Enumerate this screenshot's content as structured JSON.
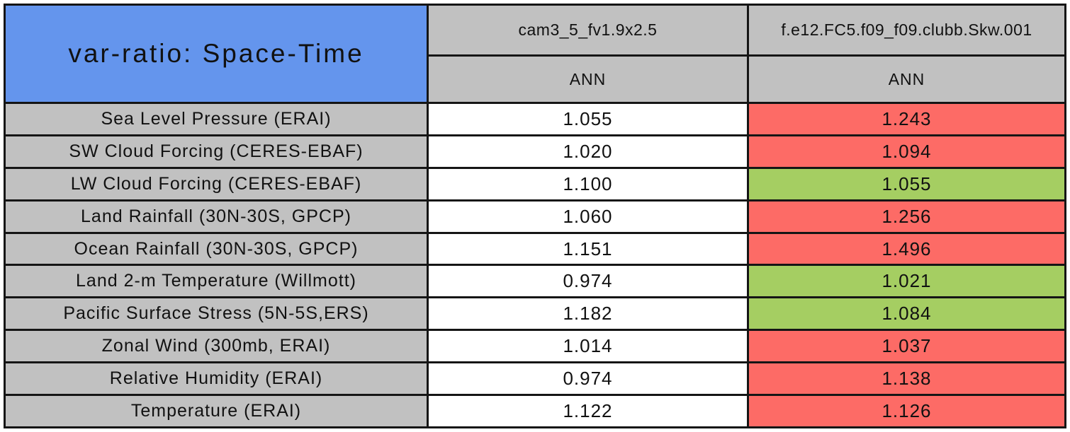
{
  "table": {
    "title": "var-ratio: Space-Time",
    "header": {
      "baseline_model": "cam3_5_fv1.9x2.5",
      "baseline_season": "ANN",
      "test_model": "f.e12.FC5.f09_f09.clubb.Skw.001",
      "test_season": "ANN"
    },
    "rows": [
      {
        "label": "Sea Level Pressure (ERAI)",
        "baseline": "1.055",
        "test": "1.243",
        "test_assessment": "worse"
      },
      {
        "label": "SW Cloud Forcing (CERES-EBAF)",
        "baseline": "1.020",
        "test": "1.094",
        "test_assessment": "worse"
      },
      {
        "label": "LW Cloud Forcing (CERES-EBAF)",
        "baseline": "1.100",
        "test": "1.055",
        "test_assessment": "better"
      },
      {
        "label": "Land Rainfall (30N-30S, GPCP)",
        "baseline": "1.060",
        "test": "1.256",
        "test_assessment": "worse"
      },
      {
        "label": "Ocean Rainfall (30N-30S, GPCP)",
        "baseline": "1.151",
        "test": "1.496",
        "test_assessment": "worse"
      },
      {
        "label": "Land 2-m Temperature (Willmott)",
        "baseline": "0.974",
        "test": "1.021",
        "test_assessment": "better"
      },
      {
        "label": "Pacific Surface Stress (5N-5S,ERS)",
        "baseline": "1.182",
        "test": "1.084",
        "test_assessment": "better"
      },
      {
        "label": "Zonal Wind (300mb, ERAI)",
        "baseline": "1.014",
        "test": "1.037",
        "test_assessment": "worse"
      },
      {
        "label": "Relative Humidity (ERAI)",
        "baseline": "0.974",
        "test": "1.138",
        "test_assessment": "worse"
      },
      {
        "label": "Temperature (ERAI)",
        "baseline": "1.122",
        "test": "1.126",
        "test_assessment": "worse"
      }
    ],
    "colors": {
      "header_blue": "#6495ED",
      "header_gray": "#C1C1C1",
      "label_gray": "#C1C1C1",
      "value_white": "#FFFFFF",
      "worse_red": "#FD6B66",
      "better_green": "#A5CE62"
    }
  },
  "chart_data": {
    "type": "table",
    "title": "var-ratio: Space-Time",
    "categories": [
      "Sea Level Pressure (ERAI)",
      "SW Cloud Forcing (CERES-EBAF)",
      "LW Cloud Forcing (CERES-EBAF)",
      "Land Rainfall (30N-30S, GPCP)",
      "Ocean Rainfall (30N-30S, GPCP)",
      "Land 2-m Temperature (Willmott)",
      "Pacific Surface Stress (5N-5S,ERS)",
      "Zonal Wind (300mb, ERAI)",
      "Relative Humidity (ERAI)",
      "Temperature (ERAI)"
    ],
    "series": [
      {
        "name": "cam3_5_fv1.9x2.5",
        "season": "ANN",
        "values": [
          1.055,
          1.02,
          1.1,
          1.06,
          1.151,
          0.974,
          1.182,
          1.014,
          0.974,
          1.122
        ],
        "cell_highlight": [
          "none",
          "none",
          "none",
          "none",
          "none",
          "none",
          "none",
          "none",
          "none",
          "none"
        ]
      },
      {
        "name": "f.e12.FC5.f09_f09.clubb.Skw.001",
        "season": "ANN",
        "values": [
          1.243,
          1.094,
          1.055,
          1.256,
          1.496,
          1.021,
          1.084,
          1.037,
          1.138,
          1.126
        ],
        "cell_highlight": [
          "worse",
          "worse",
          "better",
          "worse",
          "worse",
          "better",
          "better",
          "worse",
          "worse",
          "worse"
        ]
      }
    ],
    "layout_hints": {
      "highlight_legend": "red = worse variance ratio, green = better variance ratio, white = baseline",
      "grid": "on"
    }
  }
}
